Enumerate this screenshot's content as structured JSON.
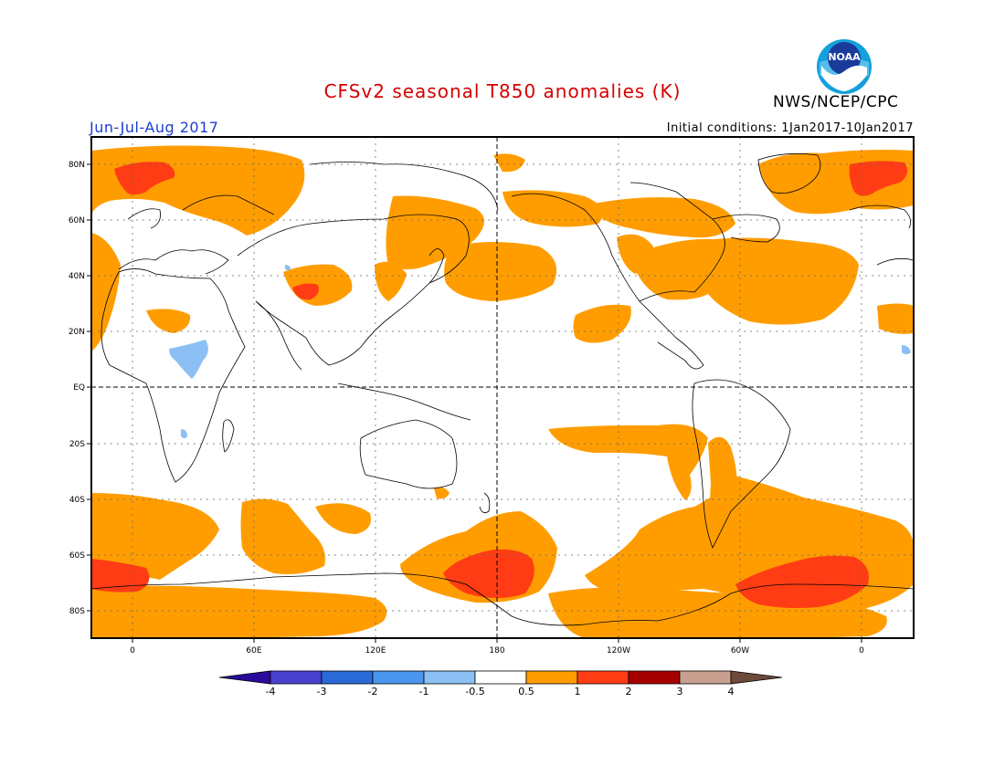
{
  "title": "CFSv2 seasonal T850 anomalies (K)",
  "season": "Jun-Jul-Aug 2017",
  "initial_conditions": "Initial conditions: 1Jan2017-10Jan2017",
  "agency": "NWS/NCEP/CPC",
  "logo_text": "NOAA",
  "lat_labels": [
    "80N",
    "60N",
    "40N",
    "20N",
    "EQ",
    "20S",
    "40S",
    "60S",
    "80S"
  ],
  "lon_labels": [
    "0",
    "60E",
    "120E",
    "180",
    "120W",
    "60W",
    "0"
  ],
  "colorbar": {
    "labels": [
      "-4",
      "-3",
      "-2",
      "-1",
      "-0.5",
      "0.5",
      "1",
      "2",
      "3",
      "4"
    ],
    "colors": [
      "#2a0a9a",
      "#4a40d0",
      "#2a6ad8",
      "#4a96ee",
      "#8cc0f4",
      "#ffffff",
      "#ff9d00",
      "#ff3c14",
      "#a50000",
      "#c8a090",
      "#6e4a3a"
    ]
  },
  "colors": {
    "title": "#d40000",
    "season": "#1a3fd6",
    "anomaly_0_5_to_1": "#ff9d00",
    "anomaly_1_to_2": "#ff3c14",
    "anomaly_neg_0_5_to_neg_1": "#8cc0f4"
  }
}
